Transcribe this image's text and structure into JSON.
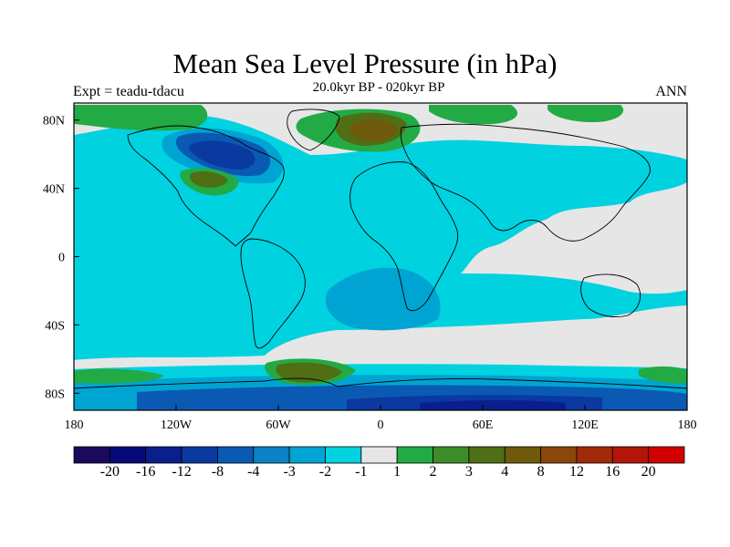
{
  "header": {
    "title": "Mean Sea Level Pressure (in hPa)",
    "subtitle": "20.0kyr BP - 020kyr BP",
    "left_label": "Expt = teadu-tdacu",
    "right_label": "ANN"
  },
  "map": {
    "projection": "cylindrical-equidistant",
    "lon_range": [
      -180,
      180
    ],
    "lat_range": [
      -90,
      90
    ],
    "x_ticks": [
      "180",
      "120W",
      "60W",
      "0",
      "60E",
      "120E",
      "180"
    ],
    "y_ticks": [
      "80N",
      "40N",
      "0",
      "40S",
      "80S"
    ],
    "background_color": "#e6e6e6",
    "coastline_color": "#000000"
  },
  "colorbar": {
    "labels": [
      "-20",
      "-16",
      "-12",
      "-8",
      "-4",
      "-3",
      "-2",
      "-1",
      "1",
      "2",
      "3",
      "4",
      "8",
      "12",
      "16",
      "20"
    ],
    "colors": [
      "#1a0a5e",
      "#050a78",
      "#0a1f8c",
      "#0a3aa0",
      "#0a5ab4",
      "#0a82c3",
      "#00a4d2",
      "#00d2e0",
      "#e6e6e6",
      "#22aa44",
      "#3c8c28",
      "#506e14",
      "#6e5a0a",
      "#8c460a",
      "#a02a0a",
      "#b4140a",
      "#d20000"
    ]
  }
}
